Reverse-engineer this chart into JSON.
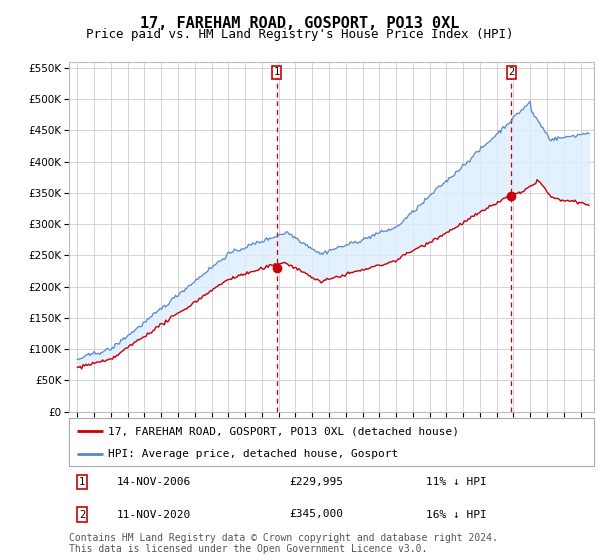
{
  "title": "17, FAREHAM ROAD, GOSPORT, PO13 0XL",
  "subtitle": "Price paid vs. HM Land Registry's House Price Index (HPI)",
  "ylim": [
    0,
    560000
  ],
  "yticks": [
    0,
    50000,
    100000,
    150000,
    200000,
    250000,
    300000,
    350000,
    400000,
    450000,
    500000,
    550000
  ],
  "background_color": "#ffffff",
  "grid_color": "#cccccc",
  "hpi_color": "#5588cc",
  "price_color": "#cc0000",
  "fill_color": "#ddeeff",
  "marker1_date": "14-NOV-2006",
  "marker1_price": 229995,
  "marker1_pct": "11% ↓ HPI",
  "marker2_date": "11-NOV-2020",
  "marker2_price": 345000,
  "marker2_pct": "16% ↓ HPI",
  "legend_label1": "17, FAREHAM ROAD, GOSPORT, PO13 0XL (detached house)",
  "legend_label2": "HPI: Average price, detached house, Gosport",
  "footer": "Contains HM Land Registry data © Crown copyright and database right 2024.\nThis data is licensed under the Open Government Licence v3.0.",
  "title_fontsize": 11,
  "subtitle_fontsize": 9,
  "axis_fontsize": 7,
  "legend_fontsize": 8,
  "footer_fontsize": 7
}
